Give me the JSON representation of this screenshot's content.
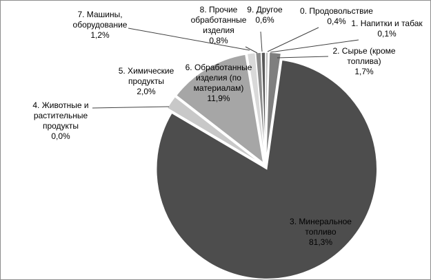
{
  "chart_data": {
    "type": "pie",
    "legend": "none",
    "slices": [
      {
        "label_lines": [
          "0. Продовольствие",
          "0,4%"
        ],
        "value": 0.4,
        "color": "#bfbfbf"
      },
      {
        "label_lines": [
          "1. Напитки и табак",
          "0,1%"
        ],
        "value": 0.1,
        "color": "#a6a6a6"
      },
      {
        "label_lines": [
          "2. Сырье (кроме",
          "топлива)",
          "1,7%"
        ],
        "value": 1.7,
        "color": "#7f7f7f"
      },
      {
        "label_lines": [
          "3. Минеральное",
          "топливо",
          "81,3%"
        ],
        "value": 81.3,
        "color": "#4d4d4d"
      },
      {
        "label_lines": [
          "4. Животные и",
          "растительные",
          "продукты",
          "0,0%"
        ],
        "value": 0.0,
        "color": "#d9d9d9"
      },
      {
        "label_lines": [
          "5. Химические",
          "продукты",
          "2,0%"
        ],
        "value": 2.0,
        "color": "#c8c8c8"
      },
      {
        "label_lines": [
          "6. Обработанные",
          "изделия (по",
          "материалам)",
          "11,9%"
        ],
        "value": 11.9,
        "color": "#a6a6a6"
      },
      {
        "label_lines": [
          "7. Машины,",
          "оборудование",
          "1,2%"
        ],
        "value": 1.2,
        "color": "#d9d9d9"
      },
      {
        "label_lines": [
          "8. Прочие",
          "обработанные",
          "изделия",
          "0,8%"
        ],
        "value": 0.8,
        "color": "#8c8c8c"
      },
      {
        "label_lines": [
          "9. Другое",
          "0,6%"
        ],
        "value": 0.6,
        "color": "#595959"
      }
    ]
  }
}
